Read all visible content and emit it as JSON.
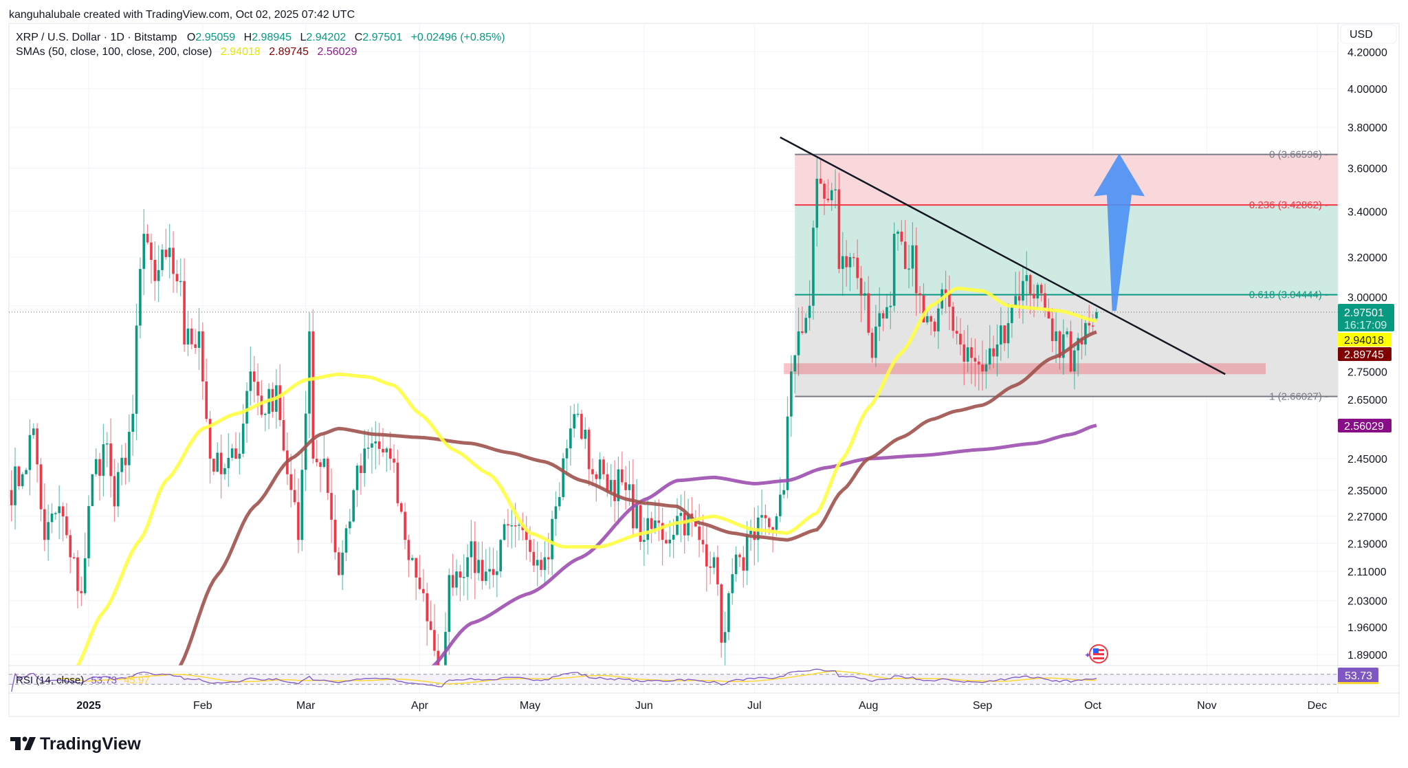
{
  "attribution": "kanguhalubale created with TradingView.com, Oct 02, 2025 07:42 UTC",
  "symbol": {
    "title": "XRP / U.S. Dollar · 1D · Bitstamp",
    "open_label": "O",
    "open": "2.95059",
    "high_label": "H",
    "high": "2.98945",
    "low_label": "L",
    "low": "2.94202",
    "close_label": "C",
    "close": "2.97501",
    "change": "+0.02496 (+0.85%)"
  },
  "sma_legend": {
    "label": "SMAs (50, close, 100, close, 200, close)",
    "sma50": "2.94018",
    "sma100": "2.89745",
    "sma200": "2.56029"
  },
  "rsi_legend": {
    "label": "RSI (14, close)",
    "rsi": "53.73",
    "rsi_ma": "45.97"
  },
  "currency_button": "USD",
  "countdown": "16:17:09",
  "price_tags": {
    "last": "2.97501",
    "sma50": "2.94018",
    "sma100": "2.89745",
    "sma200": "2.56029",
    "rsi": "53.73"
  },
  "logo": "TradingView",
  "colors": {
    "up": "#089981",
    "down": "#f23645",
    "sma50": "#ffff00",
    "sma100": "#a0524d",
    "sma200": "#9c4fb0",
    "rsi": "#7e57c2",
    "arrow": "#4a90f5"
  },
  "chart_data": {
    "type": "candlestick",
    "scale": "log",
    "price_ticks": [
      "4.20000",
      "4.00000",
      "3.80000",
      "3.60000",
      "3.40000",
      "3.20000",
      "3.00000",
      "2.75000",
      "2.65000",
      "2.45000",
      "2.35000",
      "2.27000",
      "2.19000",
      "2.11000",
      "2.03000",
      "1.96000",
      "1.89000"
    ],
    "time_ticks": [
      {
        "label": "2025",
        "date": "2025-01-01",
        "bold": true
      },
      {
        "label": "Feb",
        "date": "2025-02-01"
      },
      {
        "label": "Mar",
        "date": "2025-03-01"
      },
      {
        "label": "Apr",
        "date": "2025-04-01"
      },
      {
        "label": "May",
        "date": "2025-05-01"
      },
      {
        "label": "Jun",
        "date": "2025-06-01"
      },
      {
        "label": "Jul",
        "date": "2025-07-01"
      },
      {
        "label": "Aug",
        "date": "2025-08-01"
      },
      {
        "label": "Sep",
        "date": "2025-09-01"
      },
      {
        "label": "Oct",
        "date": "2025-10-01"
      },
      {
        "label": "Nov",
        "date": "2025-11-01"
      },
      {
        "label": "Dec",
        "date": "2025-12-01"
      }
    ],
    "close_path": [
      [
        "2024-12-10",
        2.35
      ],
      [
        "2024-12-14",
        2.4
      ],
      [
        "2024-12-17",
        2.55
      ],
      [
        "2024-12-20",
        2.2
      ],
      [
        "2024-12-24",
        2.3
      ],
      [
        "2024-12-27",
        2.15
      ],
      [
        "2024-12-30",
        2.05
      ],
      [
        "2025-01-02",
        2.4
      ],
      [
        "2025-01-06",
        2.5
      ],
      [
        "2025-01-08",
        2.3
      ],
      [
        "2025-01-13",
        2.6
      ],
      [
        "2025-01-15",
        3.15
      ],
      [
        "2025-01-16",
        3.3
      ],
      [
        "2025-01-19",
        3.1
      ],
      [
        "2025-01-22",
        3.2
      ],
      [
        "2025-01-26",
        3.1
      ],
      [
        "2025-01-27",
        2.85
      ],
      [
        "2025-01-31",
        2.9
      ],
      [
        "2025-02-03",
        2.45
      ],
      [
        "2025-02-06",
        2.4
      ],
      [
        "2025-02-10",
        2.45
      ],
      [
        "2025-02-14",
        2.75
      ],
      [
        "2025-02-18",
        2.6
      ],
      [
        "2025-02-21",
        2.7
      ],
      [
        "2025-02-24",
        2.4
      ],
      [
        "2025-02-27",
        2.2
      ],
      [
        "2025-03-02",
        2.9
      ],
      [
        "2025-03-03",
        2.45
      ],
      [
        "2025-03-06",
        2.45
      ],
      [
        "2025-03-10",
        2.1
      ],
      [
        "2025-03-14",
        2.35
      ],
      [
        "2025-03-19",
        2.5
      ],
      [
        "2025-03-24",
        2.45
      ],
      [
        "2025-03-28",
        2.2
      ],
      [
        "2025-04-02",
        2.05
      ],
      [
        "2025-04-07",
        1.75
      ],
      [
        "2025-04-09",
        2.1
      ],
      [
        "2025-04-14",
        2.15
      ],
      [
        "2025-04-21",
        2.1
      ],
      [
        "2025-04-23",
        2.2
      ],
      [
        "2025-04-30",
        2.2
      ],
      [
        "2025-05-05",
        2.15
      ],
      [
        "2025-05-08",
        2.3
      ],
      [
        "2025-05-12",
        2.55
      ],
      [
        "2025-05-14",
        2.6
      ],
      [
        "2025-05-18",
        2.4
      ],
      [
        "2025-05-21",
        2.4
      ],
      [
        "2025-05-27",
        2.35
      ],
      [
        "2025-06-01",
        2.2
      ],
      [
        "2025-06-05",
        2.25
      ],
      [
        "2025-06-06",
        2.2
      ],
      [
        "2025-06-11",
        2.28
      ],
      [
        "2025-06-16",
        2.2
      ],
      [
        "2025-06-20",
        2.15
      ],
      [
        "2025-06-22",
        1.92
      ],
      [
        "2025-06-24",
        2.05
      ],
      [
        "2025-06-27",
        2.15
      ],
      [
        "2025-07-01",
        2.2
      ],
      [
        "2025-07-07",
        2.27
      ],
      [
        "2025-07-09",
        2.35
      ],
      [
        "2025-07-11",
        2.75
      ],
      [
        "2025-07-13",
        2.9
      ],
      [
        "2025-07-16",
        3.0
      ],
      [
        "2025-07-18",
        3.55
      ],
      [
        "2025-07-21",
        3.45
      ],
      [
        "2025-07-23",
        3.5
      ],
      [
        "2025-07-24",
        3.15
      ],
      [
        "2025-07-27",
        3.2
      ],
      [
        "2025-07-31",
        3.05
      ],
      [
        "2025-08-02",
        2.8
      ],
      [
        "2025-08-05",
        2.95
      ],
      [
        "2025-08-07",
        3.0
      ],
      [
        "2025-08-08",
        3.3
      ],
      [
        "2025-08-11",
        3.15
      ],
      [
        "2025-08-13",
        3.25
      ],
      [
        "2025-08-14",
        3.05
      ],
      [
        "2025-08-19",
        2.9
      ],
      [
        "2025-08-22",
        3.05
      ],
      [
        "2025-08-26",
        2.85
      ],
      [
        "2025-08-29",
        2.8
      ],
      [
        "2025-09-01",
        2.75
      ],
      [
        "2025-09-05",
        2.85
      ],
      [
        "2025-09-09",
        3.0
      ],
      [
        "2025-09-12",
        3.1
      ],
      [
        "2025-09-17",
        3.05
      ],
      [
        "2025-09-19",
        2.95
      ],
      [
        "2025-09-21",
        2.9
      ],
      [
        "2025-09-22",
        2.8
      ],
      [
        "2025-09-24",
        2.9
      ],
      [
        "2025-09-25",
        2.75
      ],
      [
        "2025-09-28",
        2.85
      ],
      [
        "2025-10-01",
        2.92
      ],
      [
        "2025-10-02",
        2.97501
      ]
    ],
    "last_candle": {
      "date": "2025-10-02",
      "open": 2.95059,
      "high": 2.98945,
      "low": 2.94202,
      "close": 2.97501
    },
    "sma50": [
      [
        "2024-12-28",
        1.85
      ],
      [
        "2025-01-05",
        2.0
      ],
      [
        "2025-01-15",
        2.2
      ],
      [
        "2025-01-22",
        2.38
      ],
      [
        "2025-02-01",
        2.55
      ],
      [
        "2025-02-10",
        2.6
      ],
      [
        "2025-02-20",
        2.65
      ],
      [
        "2025-03-01",
        2.72
      ],
      [
        "2025-03-10",
        2.74
      ],
      [
        "2025-03-18",
        2.73
      ],
      [
        "2025-03-25",
        2.7
      ],
      [
        "2025-04-01",
        2.6
      ],
      [
        "2025-04-10",
        2.48
      ],
      [
        "2025-04-20",
        2.4
      ],
      [
        "2025-05-01",
        2.22
      ],
      [
        "2025-05-10",
        2.18
      ],
      [
        "2025-05-20",
        2.18
      ],
      [
        "2025-06-01",
        2.22
      ],
      [
        "2025-06-10",
        2.25
      ],
      [
        "2025-06-20",
        2.27
      ],
      [
        "2025-07-01",
        2.23
      ],
      [
        "2025-07-10",
        2.22
      ],
      [
        "2025-07-18",
        2.28
      ],
      [
        "2025-07-25",
        2.45
      ],
      [
        "2025-08-01",
        2.62
      ],
      [
        "2025-08-10",
        2.82
      ],
      [
        "2025-08-18",
        3.0
      ],
      [
        "2025-08-25",
        3.07
      ],
      [
        "2025-09-01",
        3.06
      ],
      [
        "2025-09-08",
        3.0
      ],
      [
        "2025-09-15",
        2.99
      ],
      [
        "2025-09-22",
        2.98
      ],
      [
        "2025-10-02",
        2.94018
      ]
    ],
    "sma100": [
      [
        "2025-01-25",
        1.85
      ],
      [
        "2025-02-05",
        2.1
      ],
      [
        "2025-02-15",
        2.3
      ],
      [
        "2025-02-25",
        2.45
      ],
      [
        "2025-03-05",
        2.53
      ],
      [
        "2025-03-10",
        2.55
      ],
      [
        "2025-03-20",
        2.53
      ],
      [
        "2025-04-01",
        2.52
      ],
      [
        "2025-04-15",
        2.5
      ],
      [
        "2025-04-25",
        2.47
      ],
      [
        "2025-05-05",
        2.44
      ],
      [
        "2025-05-15",
        2.38
      ],
      [
        "2025-05-28",
        2.32
      ],
      [
        "2025-06-01",
        2.31
      ],
      [
        "2025-06-10",
        2.3
      ],
      [
        "2025-06-16",
        2.25
      ],
      [
        "2025-06-25",
        2.22
      ],
      [
        "2025-07-01",
        2.21
      ],
      [
        "2025-07-10",
        2.2
      ],
      [
        "2025-07-18",
        2.23
      ],
      [
        "2025-07-25",
        2.35
      ],
      [
        "2025-08-01",
        2.45
      ],
      [
        "2025-08-10",
        2.52
      ],
      [
        "2025-08-18",
        2.58
      ],
      [
        "2025-08-25",
        2.61
      ],
      [
        "2025-09-01",
        2.63
      ],
      [
        "2025-09-10",
        2.7
      ],
      [
        "2025-09-20",
        2.8
      ],
      [
        "2025-10-02",
        2.89745
      ]
    ],
    "sma200": [
      [
        "2025-04-03",
        1.85
      ],
      [
        "2025-04-15",
        1.97
      ],
      [
        "2025-05-01",
        2.05
      ],
      [
        "2025-05-15",
        2.15
      ],
      [
        "2025-06-01",
        2.32
      ],
      [
        "2025-06-10",
        2.38
      ],
      [
        "2025-06-20",
        2.39
      ],
      [
        "2025-07-01",
        2.37
      ],
      [
        "2025-07-10",
        2.38
      ],
      [
        "2025-07-20",
        2.42
      ],
      [
        "2025-08-01",
        2.45
      ],
      [
        "2025-08-15",
        2.46
      ],
      [
        "2025-09-01",
        2.48
      ],
      [
        "2025-09-15",
        2.5
      ],
      [
        "2025-09-25",
        2.53
      ],
      [
        "2025-10-02",
        2.56029
      ]
    ],
    "fibonacci": {
      "start_date": "2025-07-12",
      "levels": [
        {
          "ratio": "0",
          "price": 3.66596,
          "label": "0 (3.66596)",
          "color": "#787b86"
        },
        {
          "ratio": "0.236",
          "price": 3.42862,
          "label": "0.236 (3.42862)",
          "color": "#f23645"
        },
        {
          "ratio": "0.618",
          "price": 3.04444,
          "label": "0.618 (3.04444)",
          "color": "#089981"
        },
        {
          "ratio": "1",
          "price": 2.66027,
          "label": "1 (2.66027)",
          "color": "#787b86"
        }
      ]
    },
    "trendline": {
      "from": [
        "2025-07-08",
        3.75
      ],
      "to": [
        "2025-11-06",
        2.74
      ]
    },
    "support_zone": {
      "from": "2025-07-09",
      "to": "2025-11-17",
      "low": 2.74,
      "high": 2.78
    },
    "arrow": {
      "from": [
        "2025-10-07",
        2.98
      ],
      "to": [
        "2025-10-08",
        3.67
      ]
    },
    "rsi_levels": [
      70,
      30
    ]
  }
}
